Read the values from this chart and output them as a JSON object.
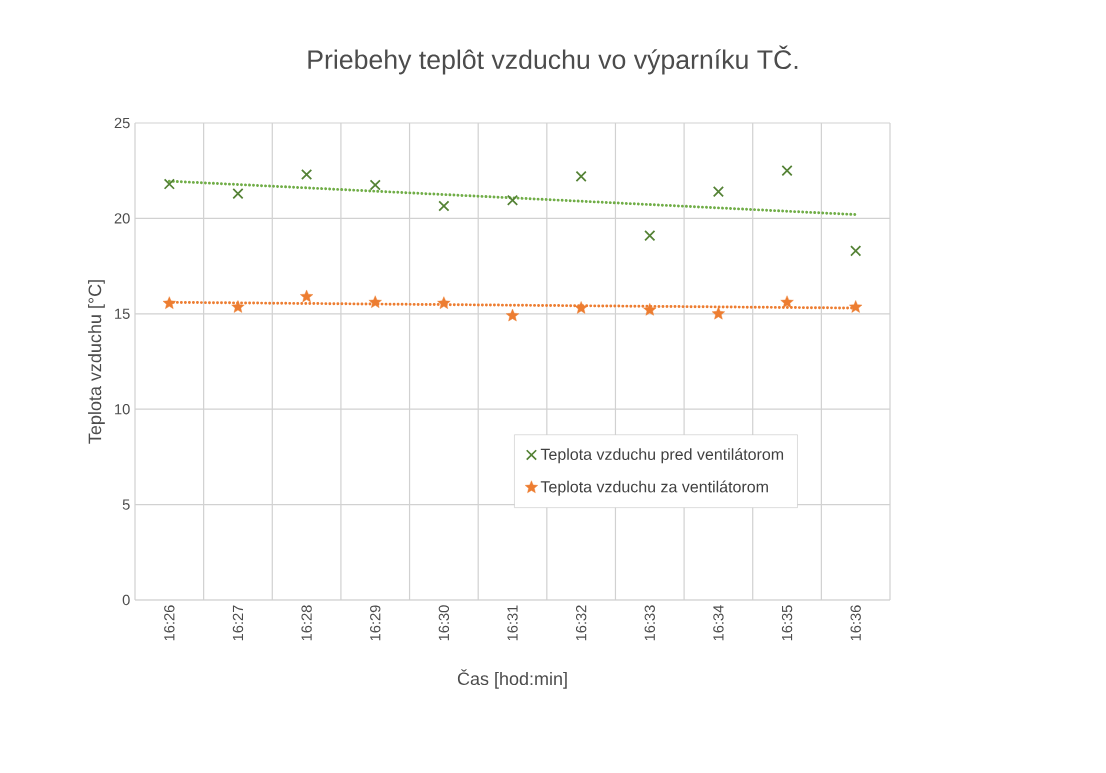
{
  "chart_data": {
    "type": "scatter",
    "title": "Priebehy teplôt vzduchu vo výparníku TČ.",
    "xlabel": "Čas  [hod:min]",
    "ylabel": "Teplota vzduchu [°C]",
    "categories": [
      "16:26",
      "16:27",
      "16:28",
      "16:29",
      "16:30",
      "16:31",
      "16:32",
      "16:33",
      "16:34",
      "16:35",
      "16:36"
    ],
    "series": [
      {
        "name": "Teplota vzduchu pred ventilátorom",
        "color": "#548235",
        "marker": "cross",
        "values": [
          21.8,
          21.3,
          22.3,
          21.75,
          20.65,
          20.95,
          22.2,
          19.1,
          21.4,
          22.5,
          18.3
        ]
      },
      {
        "name": "Teplota vzduchu za ventilátorom",
        "color": "#ed7d31",
        "marker": "star",
        "values": [
          15.55,
          15.35,
          15.9,
          15.6,
          15.55,
          14.9,
          15.3,
          15.2,
          15.0,
          15.6,
          15.35
        ]
      },
      {
        "type": "line",
        "color": "#70ad47",
        "line_style": "dotted",
        "marker": "none",
        "values": [
          21.95,
          null,
          null,
          null,
          null,
          null,
          null,
          null,
          null,
          null,
          20.2
        ]
      },
      {
        "type": "line",
        "color": "#ed7d31",
        "line_style": "dotted",
        "marker": "none",
        "values": [
          15.6,
          null,
          null,
          null,
          null,
          null,
          null,
          null,
          null,
          null,
          15.3
        ]
      }
    ],
    "ylim": [
      0,
      25
    ],
    "yticks": [
      0,
      5,
      10,
      15,
      20,
      25
    ],
    "grid": true,
    "legend": "center"
  }
}
